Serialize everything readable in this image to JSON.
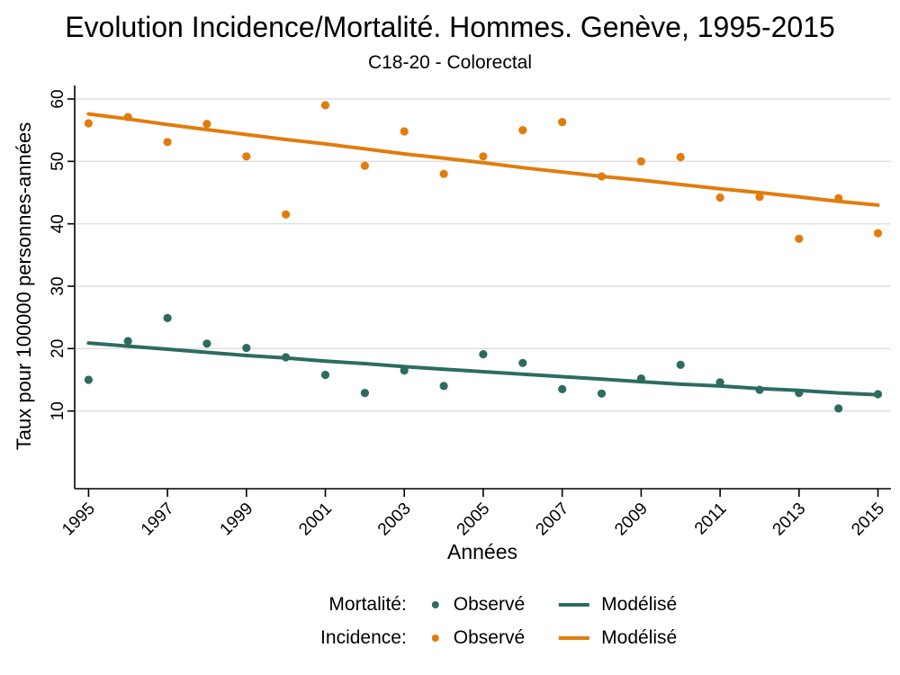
{
  "title": "Evolution Incidence/Mortalité. Hommes. Genève, 1995-2015",
  "subtitle": "C18-20 - Colorectal",
  "colors": {
    "mortality": "#2C6C60",
    "incidence": "#E07D0D",
    "gridline": "#DEDEDE",
    "axis": "#000000"
  },
  "chart_data": {
    "type": "scatter",
    "title": "Evolution Incidence/Mortalité. Hommes. Genève, 1995-2015",
    "subtitle": "C18-20 - Colorectal",
    "xlabel": "Années",
    "ylabel": "Taux pour 100000 personnes-années",
    "x": [
      1995,
      1996,
      1997,
      1998,
      1999,
      2000,
      2001,
      2002,
      2003,
      2004,
      2005,
      2006,
      2007,
      2008,
      2009,
      2010,
      2011,
      2012,
      2013,
      2014,
      2015
    ],
    "series": [
      {
        "name": "Mortalité Observé",
        "style": "points",
        "color": "#2C6C60",
        "values": [
          15.0,
          21.2,
          24.9,
          20.8,
          20.1,
          18.6,
          15.8,
          12.9,
          16.5,
          14.0,
          19.1,
          17.7,
          13.5,
          12.8,
          15.2,
          17.4,
          14.6,
          13.4,
          12.9,
          10.4,
          12.7
        ]
      },
      {
        "name": "Mortalité Modélisé",
        "style": "line",
        "color": "#2C6C60",
        "values": [
          20.9,
          20.4,
          19.9,
          19.4,
          18.9,
          18.5,
          18.0,
          17.6,
          17.1,
          16.7,
          16.3,
          15.9,
          15.5,
          15.1,
          14.7,
          14.3,
          14.0,
          13.6,
          13.3,
          12.9,
          12.6
        ]
      },
      {
        "name": "Incidence Observé",
        "style": "points",
        "color": "#E07D0D",
        "values": [
          56.1,
          57.1,
          53.1,
          56.0,
          50.8,
          41.5,
          59.0,
          49.3,
          54.8,
          48.0,
          50.8,
          55.0,
          56.3,
          47.6,
          50.0,
          50.7,
          44.2,
          44.3,
          37.6,
          44.1,
          38.5
        ]
      },
      {
        "name": "Incidence Modélisé",
        "style": "line",
        "color": "#E07D0D",
        "values": [
          57.6,
          56.8,
          55.9,
          55.1,
          54.3,
          53.5,
          52.8,
          52.0,
          51.2,
          50.5,
          49.8,
          49.0,
          48.3,
          47.6,
          47.0,
          46.3,
          45.6,
          45.0,
          44.3,
          43.6,
          43.0
        ]
      }
    ],
    "yticks": [
      10,
      20,
      30,
      40,
      50,
      60
    ],
    "xticks": [
      1995,
      1997,
      1999,
      2001,
      2003,
      2005,
      2007,
      2009,
      2011,
      2013,
      2015
    ],
    "xlim": [
      1994.65,
      2015.33
    ],
    "ylim": [
      -2.45,
      62.16
    ],
    "grid": "horizontal",
    "legend_position": "bottom"
  },
  "legend": {
    "rows": [
      {
        "series": "Mortalité:",
        "observed_label": "Observé",
        "modeled_label": "Modélisé",
        "color": "#2C6C60"
      },
      {
        "series": "Incidence:",
        "observed_label": "Observé",
        "modeled_label": "Modélisé",
        "color": "#E07D0D"
      }
    ]
  }
}
